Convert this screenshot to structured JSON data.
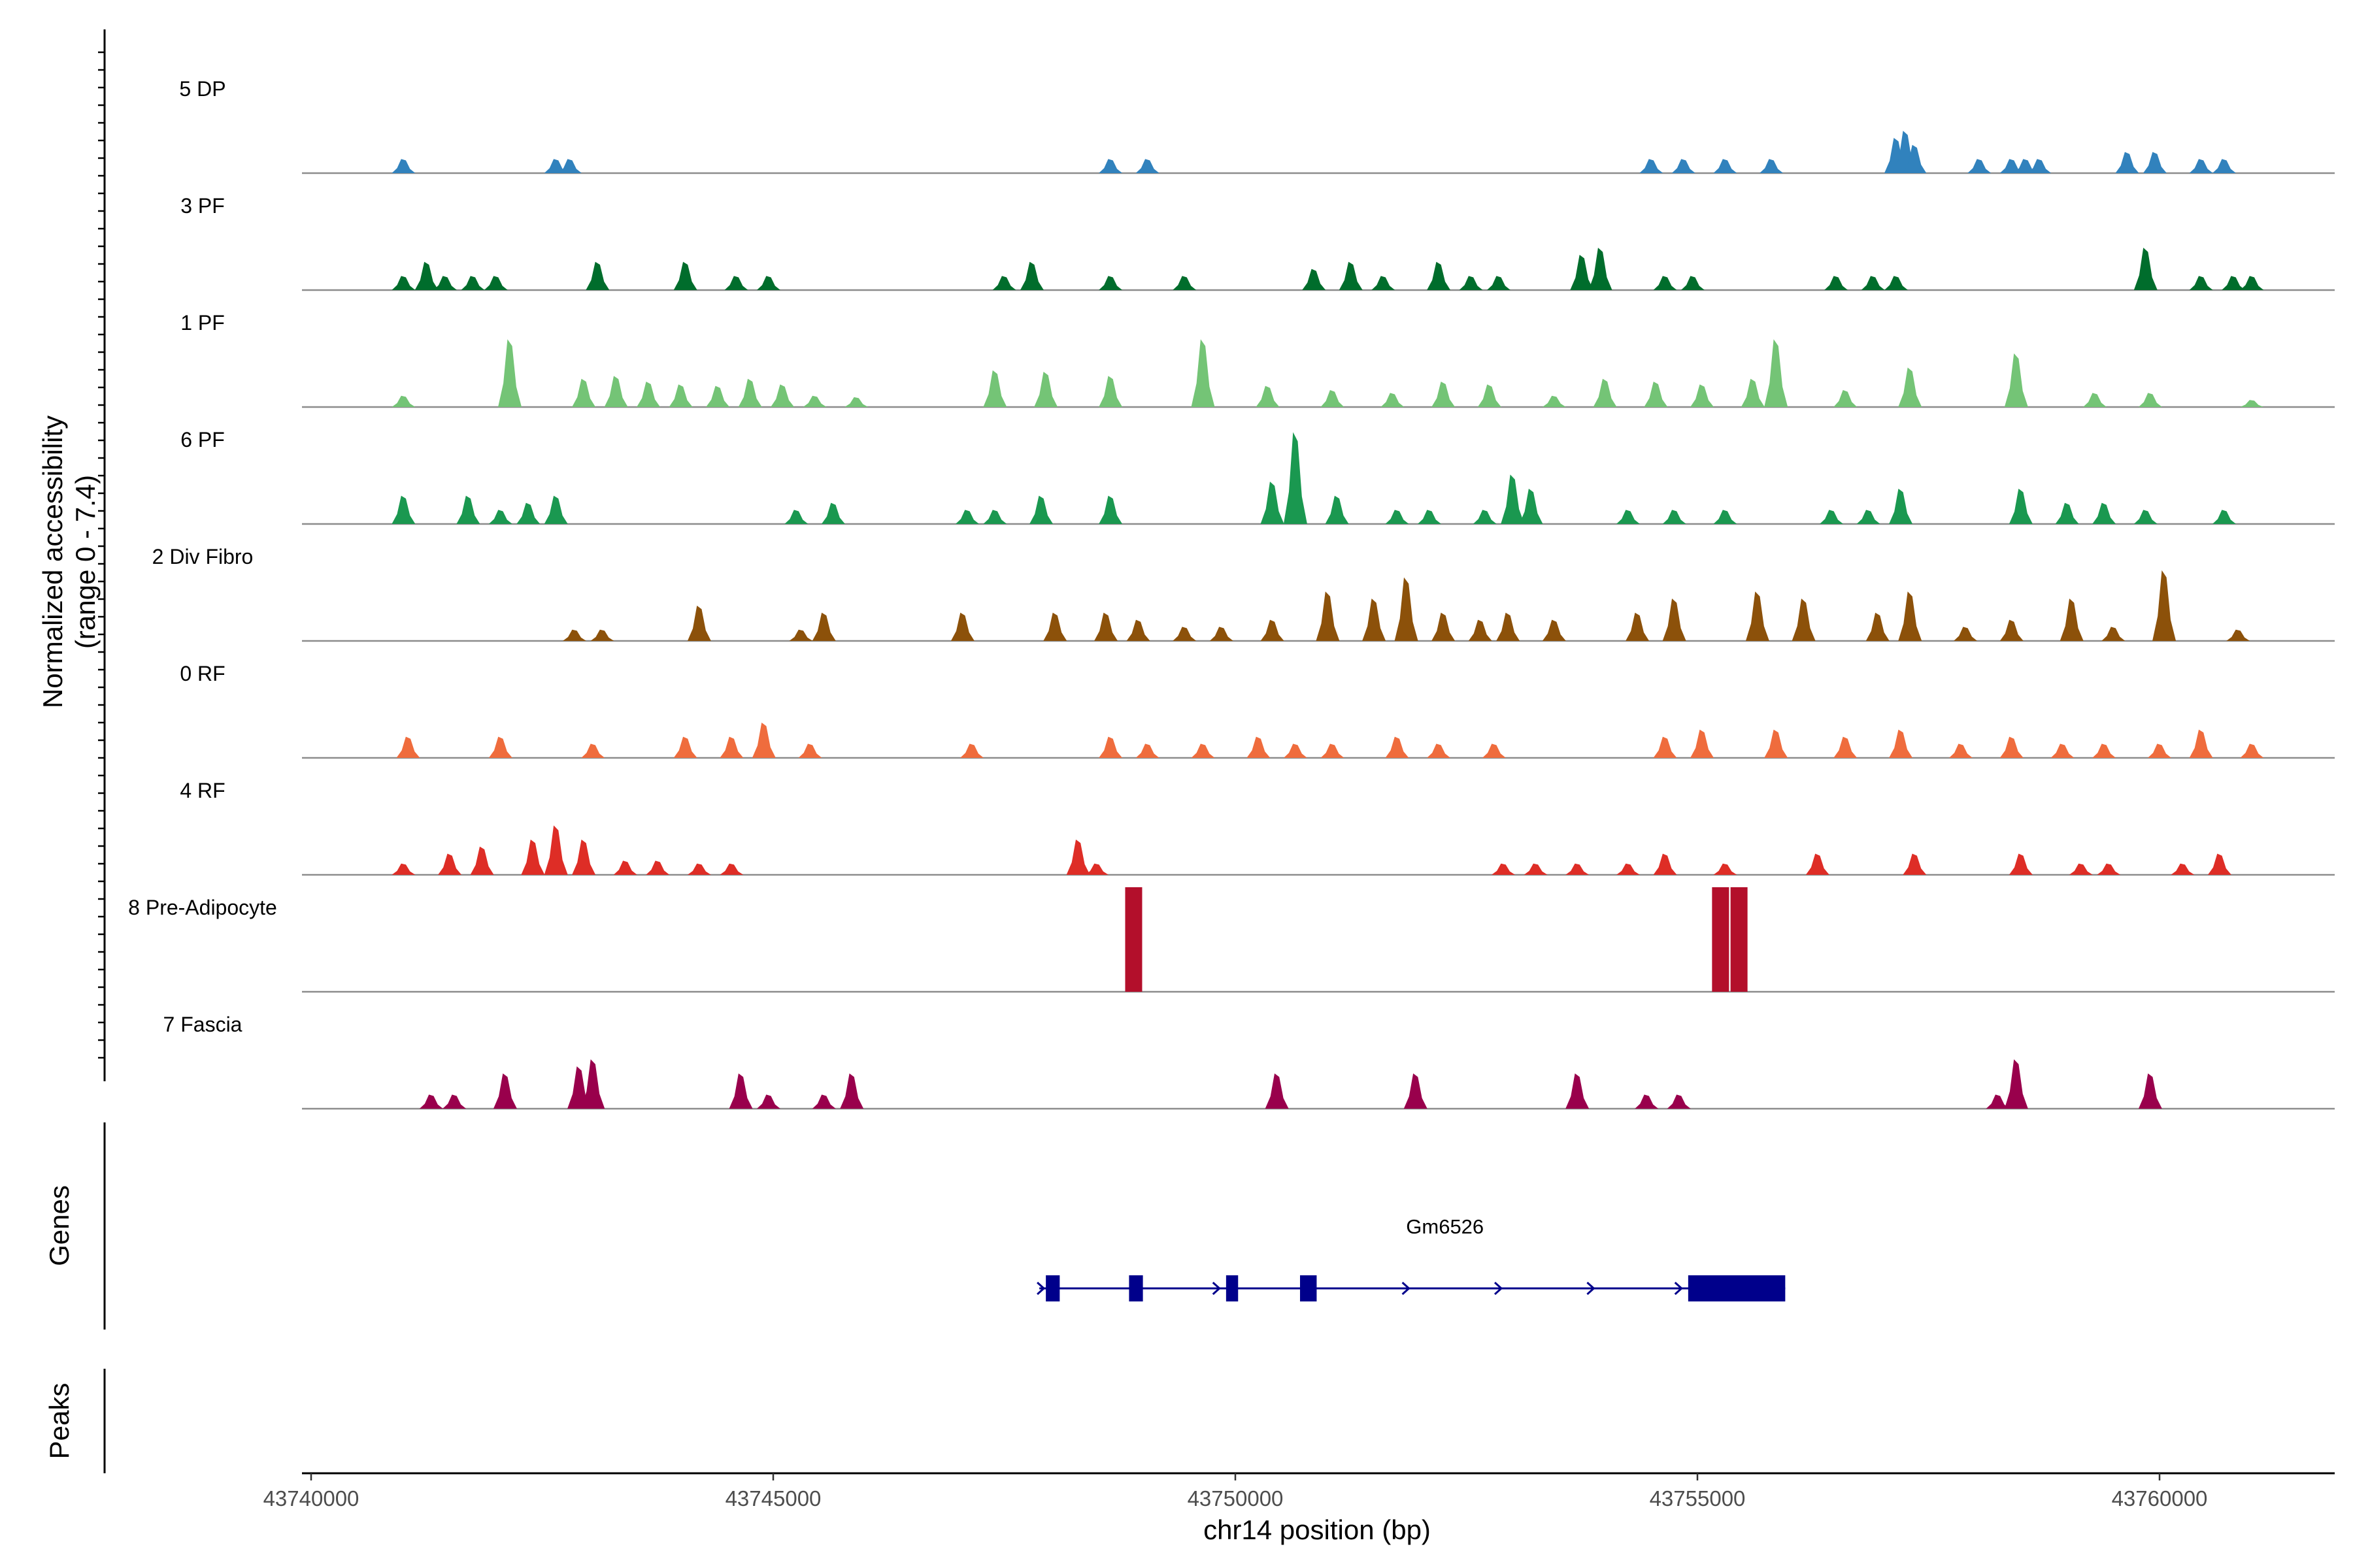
{
  "chart_data": {
    "type": "area",
    "title": "",
    "chromosome": "chr14",
    "xlabel": "chr14 position (bp)",
    "ylabel": "Normalized accessibility\n(range 0 - 7.4)",
    "ylim": [
      0,
      7.4
    ],
    "xlim": [
      43739900,
      43762000
    ],
    "x_ticks": [
      43740000,
      43745000,
      43750000,
      43755000,
      43760000
    ],
    "x_tick_labels": [
      "43740000",
      "43745000",
      "43750000",
      "43755000",
      "43760000"
    ],
    "series": [
      {
        "name": "5 DP",
        "color": "#3182bd",
        "peaks": [
          [
            43741000,
            1.0
          ],
          [
            43742650,
            1.0
          ],
          [
            43742800,
            1.0
          ],
          [
            43748650,
            1.0
          ],
          [
            43749050,
            1.0
          ],
          [
            43754500,
            1.0
          ],
          [
            43754850,
            1.0
          ],
          [
            43755300,
            1.0
          ],
          [
            43755800,
            1.0
          ],
          [
            43757150,
            2.5
          ],
          [
            43757250,
            3.0
          ],
          [
            43757350,
            2.0
          ],
          [
            43758050,
            1.0
          ],
          [
            43758400,
            1.0
          ],
          [
            43758550,
            1.0
          ],
          [
            43758700,
            1.0
          ],
          [
            43759650,
            1.5
          ],
          [
            43759950,
            1.5
          ],
          [
            43760450,
            1.0
          ],
          [
            43760700,
            1.0
          ]
        ]
      },
      {
        "name": "3 PF",
        "color": "#006d2c",
        "peaks": [
          [
            43741000,
            1.0
          ],
          [
            43741250,
            2.0
          ],
          [
            43741450,
            1.0
          ],
          [
            43741750,
            1.0
          ],
          [
            43742000,
            1.0
          ],
          [
            43743100,
            2.0
          ],
          [
            43744050,
            2.0
          ],
          [
            43744600,
            1.0
          ],
          [
            43744950,
            1.0
          ],
          [
            43747500,
            1.0
          ],
          [
            43747800,
            2.0
          ],
          [
            43748650,
            1.0
          ],
          [
            43749450,
            1.0
          ],
          [
            43750850,
            1.5
          ],
          [
            43751250,
            2.0
          ],
          [
            43751600,
            1.0
          ],
          [
            43752200,
            2.0
          ],
          [
            43752550,
            1.0
          ],
          [
            43752850,
            1.0
          ],
          [
            43753750,
            2.5
          ],
          [
            43753950,
            3.0
          ],
          [
            43754650,
            1.0
          ],
          [
            43754950,
            1.0
          ],
          [
            43756500,
            1.0
          ],
          [
            43756900,
            1.0
          ],
          [
            43757150,
            1.0
          ],
          [
            43759850,
            3.0
          ],
          [
            43760450,
            1.0
          ],
          [
            43760800,
            1.0
          ],
          [
            43761000,
            1.0
          ]
        ]
      },
      {
        "name": "1 PF",
        "color": "#74c476",
        "peaks": [
          [
            43741000,
            0.8
          ],
          [
            43742150,
            4.8
          ],
          [
            43742950,
            2.0
          ],
          [
            43743300,
            2.2
          ],
          [
            43743650,
            1.8
          ],
          [
            43744000,
            1.6
          ],
          [
            43744400,
            1.5
          ],
          [
            43744750,
            2.0
          ],
          [
            43745100,
            1.6
          ],
          [
            43745450,
            0.8
          ],
          [
            43745900,
            0.7
          ],
          [
            43747400,
            2.6
          ],
          [
            43747950,
            2.5
          ],
          [
            43748650,
            2.2
          ],
          [
            43749650,
            4.8
          ],
          [
            43750350,
            1.5
          ],
          [
            43751050,
            1.2
          ],
          [
            43751700,
            1.0
          ],
          [
            43752250,
            1.8
          ],
          [
            43752750,
            1.6
          ],
          [
            43753450,
            0.8
          ],
          [
            43754000,
            2.0
          ],
          [
            43754550,
            1.8
          ],
          [
            43755050,
            1.6
          ],
          [
            43755600,
            2.0
          ],
          [
            43755850,
            4.8
          ],
          [
            43756600,
            1.2
          ],
          [
            43757300,
            2.8
          ],
          [
            43758450,
            3.8
          ],
          [
            43759300,
            1.0
          ],
          [
            43759900,
            1.0
          ],
          [
            43761000,
            0.5
          ]
        ]
      },
      {
        "name": "6 PF",
        "color": "#1a9850",
        "peaks": [
          [
            43741000,
            2.0
          ],
          [
            43741700,
            2.0
          ],
          [
            43742050,
            1.0
          ],
          [
            43742350,
            1.5
          ],
          [
            43742650,
            2.0
          ],
          [
            43745250,
            1.0
          ],
          [
            43745650,
            1.5
          ],
          [
            43747100,
            1.0
          ],
          [
            43747400,
            1.0
          ],
          [
            43747900,
            2.0
          ],
          [
            43748650,
            2.0
          ],
          [
            43750400,
            3.0
          ],
          [
            43750650,
            6.5
          ],
          [
            43751100,
            2.0
          ],
          [
            43751750,
            1.0
          ],
          [
            43752100,
            1.0
          ],
          [
            43752700,
            1.0
          ],
          [
            43753000,
            3.5
          ],
          [
            43753200,
            2.5
          ],
          [
            43754250,
            1.0
          ],
          [
            43754750,
            1.0
          ],
          [
            43755300,
            1.0
          ],
          [
            43756450,
            1.0
          ],
          [
            43756850,
            1.0
          ],
          [
            43757200,
            2.5
          ],
          [
            43758500,
            2.5
          ],
          [
            43759000,
            1.5
          ],
          [
            43759400,
            1.5
          ],
          [
            43759850,
            1.0
          ],
          [
            43760700,
            1.0
          ]
        ]
      },
      {
        "name": "2 Div Fibro",
        "color": "#8c510a",
        "peaks": [
          [
            43742850,
            0.8
          ],
          [
            43743150,
            0.8
          ],
          [
            43744200,
            2.5
          ],
          [
            43745300,
            0.8
          ],
          [
            43745550,
            2.0
          ],
          [
            43747050,
            2.0
          ],
          [
            43748050,
            2.0
          ],
          [
            43748600,
            2.0
          ],
          [
            43748950,
            1.5
          ],
          [
            43749450,
            1.0
          ],
          [
            43749850,
            1.0
          ],
          [
            43750400,
            1.5
          ],
          [
            43751000,
            3.5
          ],
          [
            43751500,
            3.0
          ],
          [
            43751850,
            4.5
          ],
          [
            43752250,
            2.0
          ],
          [
            43752650,
            1.5
          ],
          [
            43752950,
            2.0
          ],
          [
            43753450,
            1.5
          ],
          [
            43754350,
            2.0
          ],
          [
            43754750,
            3.0
          ],
          [
            43755650,
            3.5
          ],
          [
            43756150,
            3.0
          ],
          [
            43756950,
            2.0
          ],
          [
            43757300,
            3.5
          ],
          [
            43757900,
            1.0
          ],
          [
            43758400,
            1.5
          ],
          [
            43759050,
            3.0
          ],
          [
            43759500,
            1.0
          ],
          [
            43760050,
            5.0
          ],
          [
            43760850,
            0.8
          ]
        ]
      },
      {
        "name": "0 RF",
        "color": "#ef6c3d",
        "peaks": [
          [
            43741050,
            1.5
          ],
          [
            43742050,
            1.5
          ],
          [
            43743050,
            1.0
          ],
          [
            43744050,
            1.5
          ],
          [
            43744550,
            1.5
          ],
          [
            43744900,
            2.5
          ],
          [
            43745400,
            1.0
          ],
          [
            43747150,
            1.0
          ],
          [
            43748650,
            1.5
          ],
          [
            43749050,
            1.0
          ],
          [
            43749650,
            1.0
          ],
          [
            43750250,
            1.5
          ],
          [
            43750650,
            1.0
          ],
          [
            43751050,
            1.0
          ],
          [
            43751750,
            1.5
          ],
          [
            43752200,
            1.0
          ],
          [
            43752800,
            1.0
          ],
          [
            43754650,
            1.5
          ],
          [
            43755050,
            2.0
          ],
          [
            43755850,
            2.0
          ],
          [
            43756600,
            1.5
          ],
          [
            43757200,
            2.0
          ],
          [
            43757850,
            1.0
          ],
          [
            43758400,
            1.5
          ],
          [
            43758950,
            1.0
          ],
          [
            43759400,
            1.0
          ],
          [
            43760000,
            1.0
          ],
          [
            43760450,
            2.0
          ],
          [
            43761000,
            1.0
          ]
        ]
      },
      {
        "name": "4 RF",
        "color": "#de2d26",
        "peaks": [
          [
            43741000,
            0.8
          ],
          [
            43741500,
            1.5
          ],
          [
            43741850,
            2.0
          ],
          [
            43742400,
            2.5
          ],
          [
            43742650,
            3.5
          ],
          [
            43742950,
            2.5
          ],
          [
            43743400,
            1.0
          ],
          [
            43743750,
            1.0
          ],
          [
            43744200,
            0.8
          ],
          [
            43744550,
            0.8
          ],
          [
            43748300,
            2.5
          ],
          [
            43748500,
            0.8
          ],
          [
            43752900,
            0.8
          ],
          [
            43753250,
            0.8
          ],
          [
            43753700,
            0.8
          ],
          [
            43754250,
            0.8
          ],
          [
            43754650,
            1.5
          ],
          [
            43755300,
            0.8
          ],
          [
            43756300,
            1.5
          ],
          [
            43757350,
            1.5
          ],
          [
            43758500,
            1.5
          ],
          [
            43759150,
            0.8
          ],
          [
            43759450,
            0.8
          ],
          [
            43760250,
            0.8
          ],
          [
            43760650,
            1.5
          ]
        ]
      },
      {
        "name": "8 Pre-Adipocyte",
        "color": "#b30f2b",
        "peaks": [
          [
            43748900,
            7.4
          ],
          [
            43755250,
            7.4
          ],
          [
            43755450,
            7.4
          ]
        ]
      },
      {
        "name": "7 Fascia",
        "color": "#99004c",
        "peaks": [
          [
            43741300,
            1.0
          ],
          [
            43741550,
            1.0
          ],
          [
            43742100,
            2.5
          ],
          [
            43742900,
            3.0
          ],
          [
            43743050,
            3.5
          ],
          [
            43744650,
            2.5
          ],
          [
            43744950,
            1.0
          ],
          [
            43745550,
            1.0
          ],
          [
            43745850,
            2.5
          ],
          [
            43750450,
            2.5
          ],
          [
            43751950,
            2.5
          ],
          [
            43753700,
            2.5
          ],
          [
            43754450,
            1.0
          ],
          [
            43754800,
            1.0
          ],
          [
            43758250,
            1.0
          ],
          [
            43758450,
            3.5
          ],
          [
            43759900,
            2.5
          ]
        ]
      }
    ],
    "gene": {
      "name": "Gm6526",
      "strand": "+",
      "start": 43747950,
      "end": 43755950,
      "exons": [
        [
          43747950,
          43748100
        ],
        [
          43748850,
          43749000
        ],
        [
          43749900,
          43750030
        ],
        [
          43750700,
          43750880
        ],
        [
          43754900,
          43755950
        ]
      ]
    },
    "panels": [
      "Genes",
      "Peaks"
    ]
  }
}
